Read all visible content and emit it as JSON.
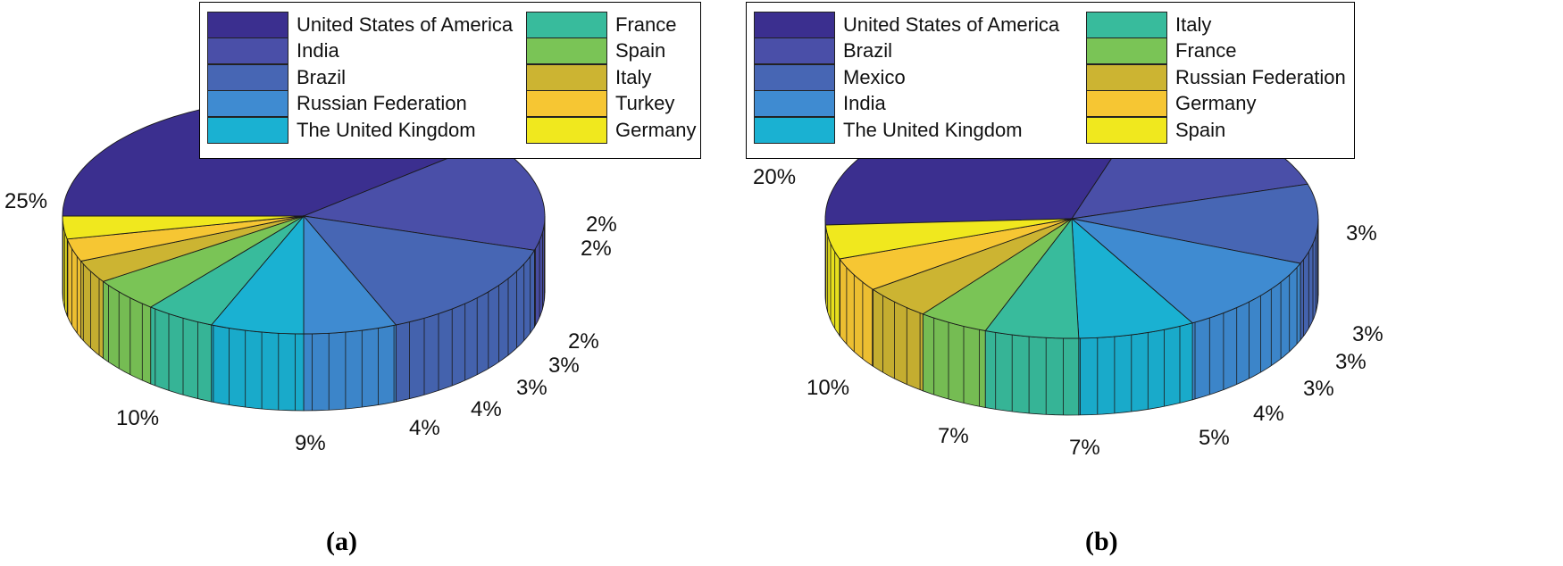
{
  "chart_data": [
    {
      "type": "pie",
      "caption": "(a)",
      "categories": [
        "United States of America",
        "India",
        "Brazil",
        "Russian Federation",
        "The United Kingdom",
        "France",
        "Spain",
        "Italy",
        "Turkey",
        "Germany"
      ],
      "values": [
        25,
        10,
        9,
        4,
        4,
        3,
        3,
        2,
        2,
        2
      ],
      "labels": [
        "25%",
        "10%",
        "9%",
        "4%",
        "4%",
        "3%",
        "3%",
        "2%",
        "2%",
        "2%"
      ],
      "colors": [
        "#3b2f8f",
        "#4a4fa8",
        "#4766b4",
        "#3f8bd1",
        "#1ab1d2",
        "#38bb9c",
        "#7ac456",
        "#ccb432",
        "#f6c633",
        "#f0e81e"
      ],
      "style": "3d",
      "legend_position": "top"
    },
    {
      "type": "pie",
      "caption": "(b)",
      "categories": [
        "United States of America",
        "Brazil",
        "Mexico",
        "India",
        "The United Kingdom",
        "Italy",
        "France",
        "Russian Federation",
        "Germany",
        "Spain"
      ],
      "values": [
        20,
        10,
        7,
        7,
        5,
        4,
        3,
        3,
        3,
        3
      ],
      "labels": [
        "20%",
        "10%",
        "7%",
        "7%",
        "5%",
        "4%",
        "3%",
        "3%",
        "3%",
        "3%"
      ],
      "colors": [
        "#3b2f8f",
        "#4a4fa8",
        "#4766b4",
        "#3f8bd1",
        "#1ab1d2",
        "#38bb9c",
        "#7ac456",
        "#ccb432",
        "#f6c633",
        "#f0e81e"
      ],
      "style": "3d",
      "legend_position": "top"
    }
  ]
}
